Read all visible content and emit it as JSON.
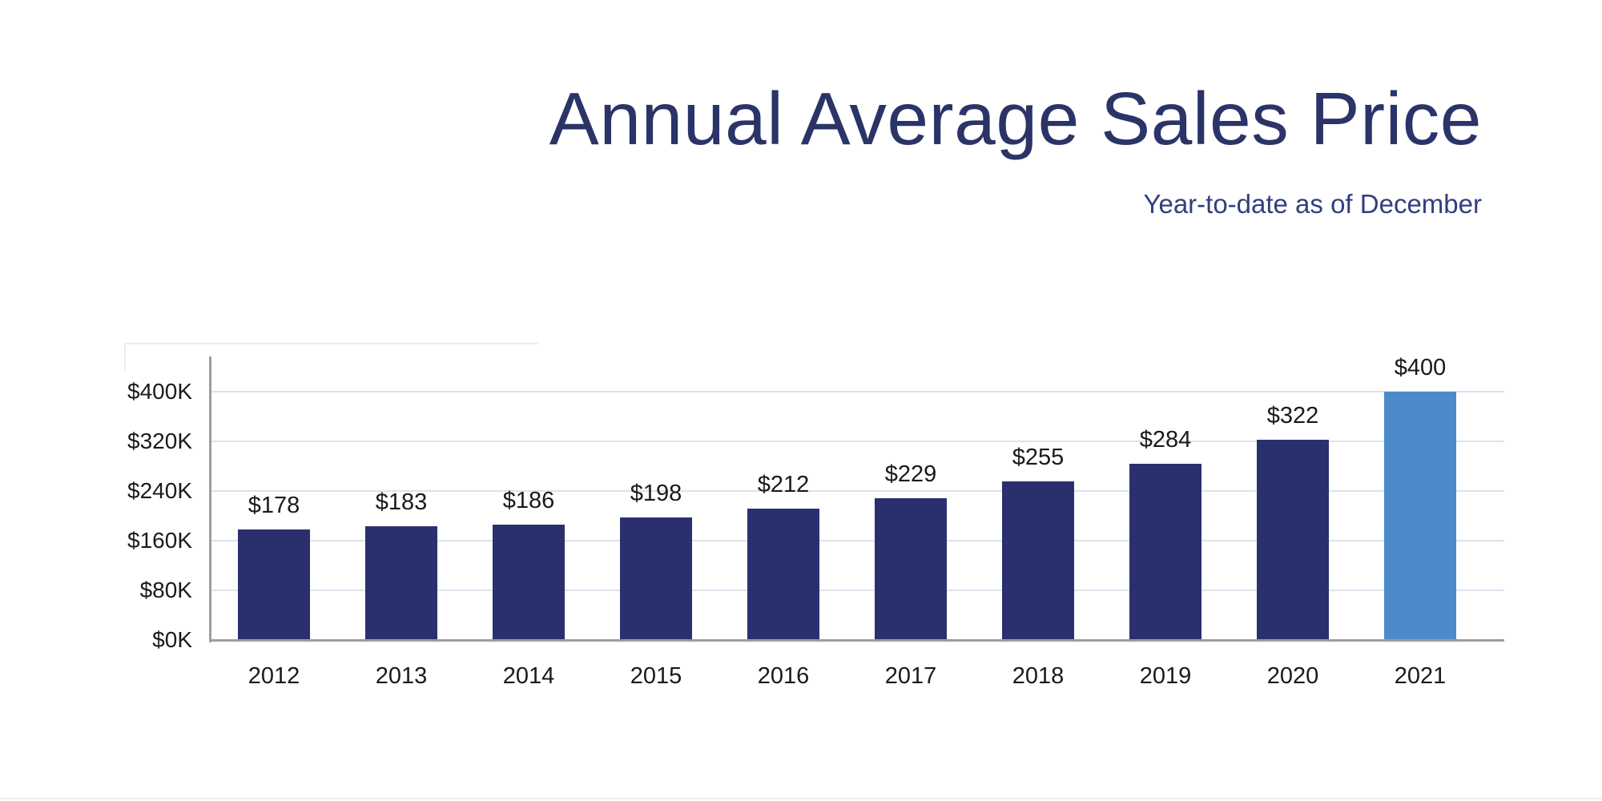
{
  "header": {
    "title": "Annual Average Sales Price",
    "subtitle": "Year-to-date as of December"
  },
  "chart_data": {
    "type": "bar",
    "title": "Annual Average Sales Price",
    "subtitle": "Year-to-date as of December",
    "categories": [
      "2012",
      "2013",
      "2014",
      "2015",
      "2016",
      "2017",
      "2018",
      "2019",
      "2020",
      "2021"
    ],
    "values": [
      178,
      183,
      186,
      198,
      212,
      229,
      255,
      284,
      322,
      400
    ],
    "value_labels": [
      "$178",
      "$183",
      "$186",
      "$198",
      "$212",
      "$229",
      "$255",
      "$284",
      "$322",
      "$400"
    ],
    "xlabel": "",
    "ylabel": "",
    "y_ticks": [
      "$0K",
      "$80K",
      "$160K",
      "$240K",
      "$320K",
      "$400K"
    ],
    "y_tick_values": [
      0,
      80,
      160,
      240,
      320,
      400
    ],
    "ylim": [
      0,
      430
    ],
    "grid": "horizontal",
    "legend": "none",
    "highlight_category": "2021",
    "colors": {
      "bar_default": "#2a306e",
      "bar_highlight": "#4c8bc9",
      "title_text": "#2b3468",
      "subtitle_text": "#333e7c",
      "gridline": "#dce3ee",
      "axis_line": "#9d9d9d",
      "label_text": "#1a1a1a"
    }
  }
}
